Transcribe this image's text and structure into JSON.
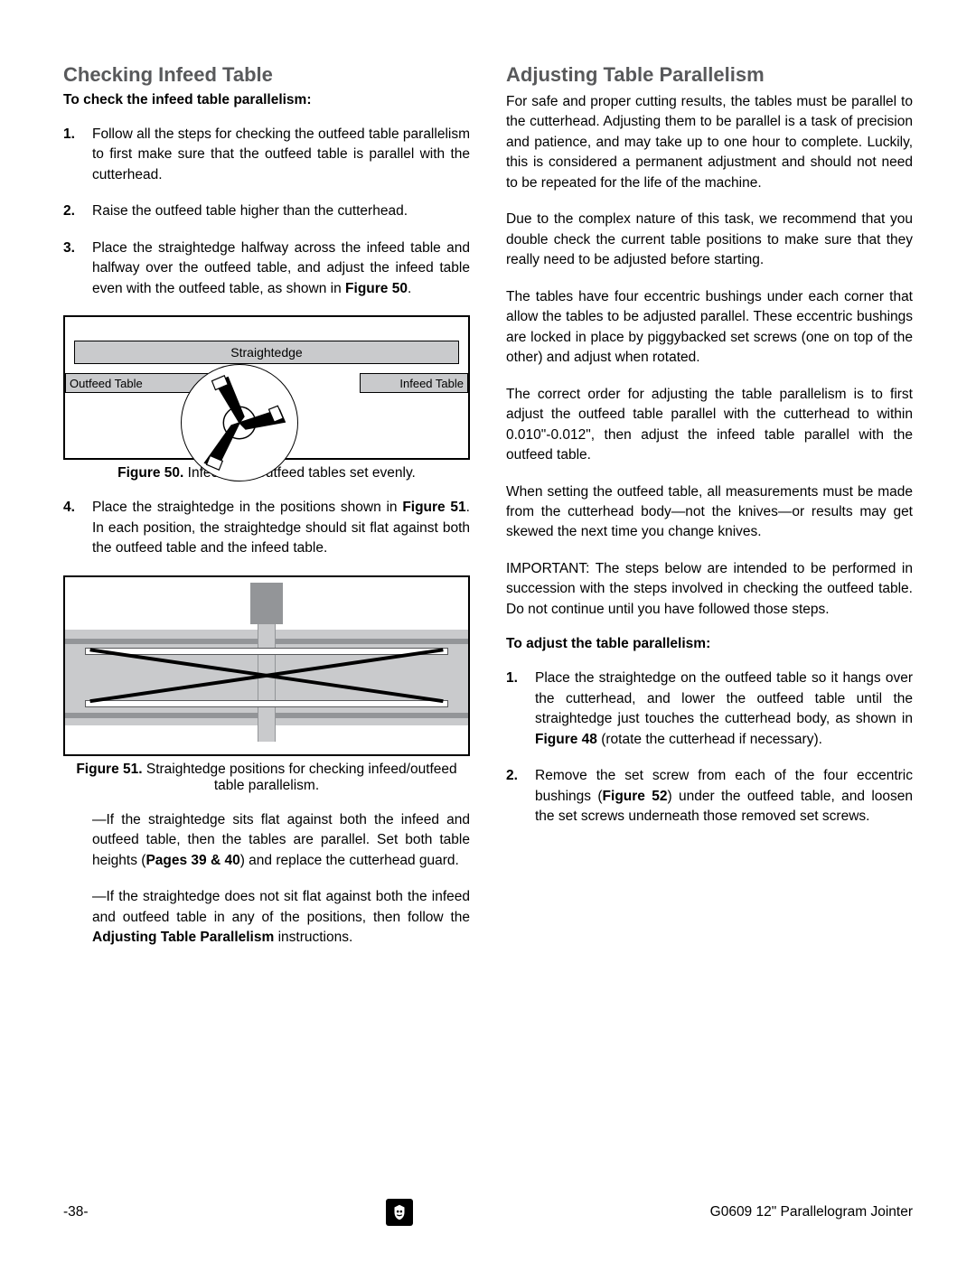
{
  "left": {
    "heading": "Checking Infeed Table",
    "subhead": "To check the infeed table parallelism:",
    "steps": [
      "Follow all the steps for checking the outfeed table parallelism to first make sure that the outfeed table is parallel with the cutterhead.",
      "Raise the outfeed table higher than the cutterhead.",
      "Place the straightedge halfway across the infeed table and halfway over the outfeed table, and adjust the infeed table even with the outfeed table, as shown in <b>Figure 50</b>.",
      "Place the straightedge in the positions shown in <b>Figure 51</b>. In each position, the straightedge should sit flat against both the outfeed table and the infeed table."
    ],
    "fig50": {
      "straightedge": "Straightedge",
      "outfeed": "Outfeed Table",
      "infeed": "Infeed Table",
      "caption_num": "Figure 50.",
      "caption_txt": " Infeed and outfeed tables set evenly."
    },
    "fig51": {
      "caption_num": "Figure 51.",
      "caption_txt": " Straightedge positions for checking infeed/outfeed table parallelism."
    },
    "bullets": [
      "—If the straightedge sits flat against both the infeed and outfeed table, then the tables are parallel. Set both table heights (<b>Pages 39 & 40</b>) and replace the cutterhead guard.",
      "—If the straightedge does not sit flat against both the infeed and outfeed table in any of the positions, then follow the <b>Adjusting Table Parallelism</b> instructions."
    ]
  },
  "right": {
    "heading": "Adjusting Table Parallelism",
    "paras": [
      "For safe and proper cutting results, the tables must be parallel to the cutterhead. Adjusting them to be parallel is a task of precision and patience, and may take up to one hour to complete. Luckily, this is considered a permanent adjustment and should not need to be repeated for the life of the machine.",
      "Due to the complex nature of this task, we recommend that you double check the current table positions to make sure that they really need to be adjusted before starting.",
      "The tables have four eccentric bushings under each corner that allow the tables to be adjusted parallel. These eccentric bushings are locked in place by piggybacked set screws (one on top of the other) and adjust when rotated.",
      "The correct order for adjusting the table parallelism is to first adjust the outfeed table parallel with the cutterhead to within 0.010\"-0.012\", then adjust the infeed table parallel with the outfeed table.",
      "When setting the outfeed table, all measurements must be made from the cutterhead body—not the knives—or results may get skewed the next time you change knives.",
      "IMPORTANT: The steps below are intended to be performed in succession with the steps involved in checking the outfeed table. Do not continue until you have followed those steps."
    ],
    "subhead": "To adjust the table parallelism:",
    "steps": [
      "Place the straightedge on the outfeed table so it hangs over the cutterhead, and lower the outfeed table until the straightedge just touches the cutterhead body, as shown in <b>Figure 48</b> (rotate the cutterhead if necessary).",
      "Remove the set screw from each of the four eccentric bushings (<b>Figure 52</b>) under the outfeed table, and loosen the set screws underneath those removed set screws."
    ]
  },
  "footer": {
    "page": "-38-",
    "model": "G0609 12\" Parallelogram Jointer"
  },
  "colors": {
    "heading": "#58595b",
    "grey_light": "#dcddde",
    "grey_mid": "#c9cacc",
    "grey_dark": "#939598"
  }
}
